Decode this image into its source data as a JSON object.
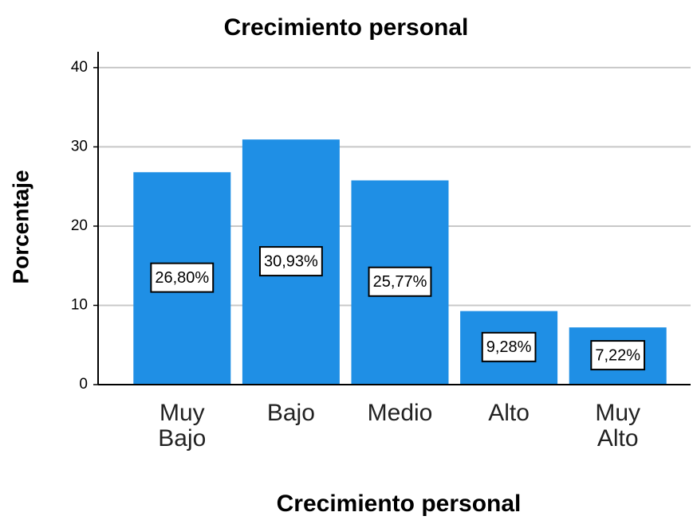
{
  "chart_data": {
    "type": "bar",
    "title": "Crecimiento personal",
    "x_label": "Crecimiento personal",
    "y_label": "Porcentaje",
    "categories": [
      "Muy Bajo",
      "Bajo",
      "Medio",
      "Alto",
      "Muy Alto"
    ],
    "values": [
      26.8,
      30.93,
      25.77,
      9.28,
      7.22
    ],
    "value_labels": [
      "26,80%",
      "30,93%",
      "25,77%",
      "9,28%",
      "7,22%"
    ],
    "color": "#1f8fe5",
    "ylim": [
      0,
      42
    ],
    "yticks": [
      0,
      10,
      20,
      30,
      40
    ],
    "grid": true
  }
}
